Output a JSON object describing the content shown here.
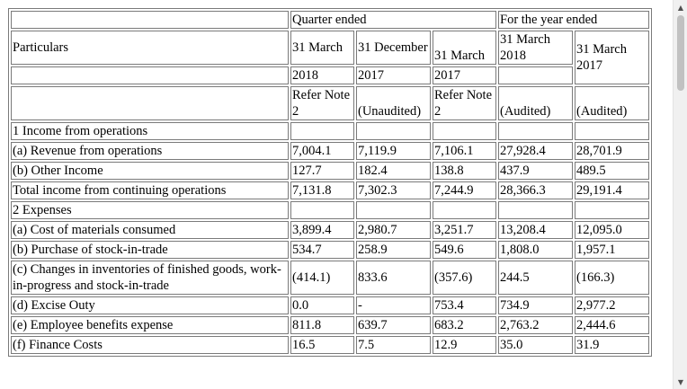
{
  "headers": {
    "particulars": "Particulars",
    "quarter_ended": "Quarter ended",
    "year_ended": "For the year ended",
    "q_cols": [
      {
        "date": "31 March",
        "year": "2018",
        "note": "Refer Note 2"
      },
      {
        "date": "31 December",
        "year": "2017",
        "note": "(Unaudited)"
      },
      {
        "date": "31 March",
        "year": "2017",
        "note": "Refer Note 2"
      }
    ],
    "y_cols": [
      {
        "date": "31 March 2018",
        "note": "(Audited)"
      },
      {
        "date": "31 March 2017",
        "note": "(Audited)"
      }
    ]
  },
  "rows": [
    {
      "label": "1 Income from operations",
      "section": true
    },
    {
      "label": "(a) Revenue from operations",
      "values": [
        "7,004.1",
        "7,119.9",
        "7,106.1",
        "27,928.4",
        "28,701.9"
      ]
    },
    {
      "label": "(b) Other Income",
      "values": [
        "127.7",
        "182.4",
        "138.8",
        "437.9",
        "489.5"
      ]
    },
    {
      "label": "Total income from continuing operations",
      "values": [
        "7,131.8",
        "7,302.3",
        "7,244.9",
        "28,366.3",
        "29,191.4"
      ]
    },
    {
      "label": "2 Expenses",
      "section": true
    },
    {
      "label": "(a) Cost of materials consumed",
      "values": [
        "3,899.4",
        "2,980.7",
        "3,251.7",
        "13,208.4",
        "12,095.0"
      ]
    },
    {
      "label": "(b) Purchase of stock-in-trade",
      "values": [
        "534.7",
        "258.9",
        "549.6",
        "1,808.0",
        "1,957.1"
      ]
    },
    {
      "label": "(c) Changes in inventories of finished goods, work-in-progress and stock-in-trade",
      "multiline": true,
      "values": [
        "(414.1)",
        "833.6",
        "(357.6)",
        "244.5",
        "(166.3)"
      ]
    },
    {
      "label": "(d) Excise Outy",
      "values": [
        "0.0",
        "-",
        "753.4",
        "734.9",
        "2,977.2"
      ]
    },
    {
      "label": "(e) Employee benefits expense",
      "values": [
        "811.8",
        "639.7",
        "683.2",
        "2,763.2",
        "2,444.6"
      ]
    },
    {
      "label": "(f) Finance Costs",
      "values": [
        "16.5",
        "7.5",
        "12.9",
        "35.0",
        "31.9"
      ]
    }
  ],
  "scrollbar": {
    "up_icon": "▲",
    "down_icon": "▼"
  }
}
